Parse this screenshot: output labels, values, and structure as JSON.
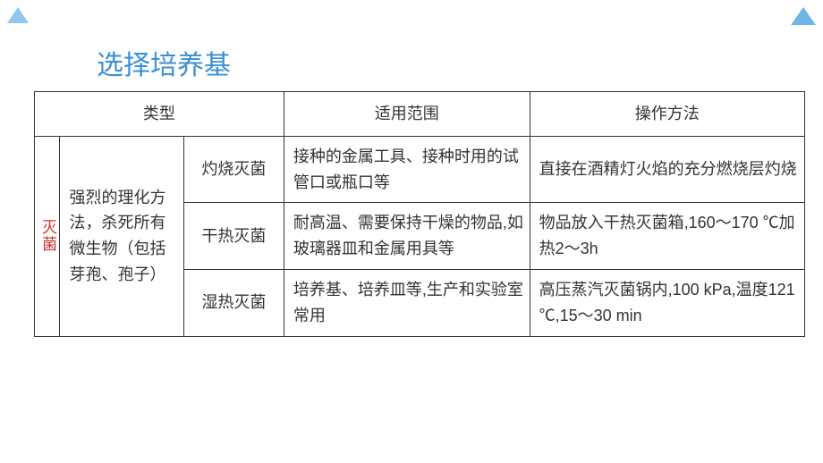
{
  "title": "选择培养基",
  "colors": {
    "title_color": "#3a8fd4",
    "vertical_label_color": "#c8322b",
    "border_color": "#333333",
    "text_color": "#333333",
    "triangle_light": "#8fc7ef",
    "triangle_dark": "#6eb5e8",
    "background": "#ffffff"
  },
  "typography": {
    "title_fontsize": 30,
    "cell_fontsize": 18,
    "font_family": "Microsoft YaHei"
  },
  "table": {
    "vertical_label": "灭菌",
    "description": "强烈的理化方法，杀死所有微生物（包括芽孢、孢子）",
    "headers": {
      "type": "类型",
      "scope": "适用范围",
      "operation": "操作方法"
    },
    "columns": {
      "vert_width": 28,
      "desc_width": 136,
      "type_width": 110,
      "scope_width": 270,
      "op_width": 302
    },
    "rows": [
      {
        "type": "灼烧灭菌",
        "scope": "接种的金属工具、接种时用的试管口或瓶口等",
        "operation": "直接在酒精灯火焰的充分燃烧层灼烧"
      },
      {
        "type": "干热灭菌",
        "scope": "耐高温、需要保持干燥的物品,如玻璃器皿和金属用具等",
        "operation": "物品放入干热灭菌箱,160～170 ℃加热2～3h"
      },
      {
        "type": "湿热灭菌",
        "scope": "培养基、培养皿等,生产和实验室常用",
        "operation": "高压蒸汽灭菌锅内,100 kPa,温度121 ℃,15～30 min"
      }
    ]
  }
}
